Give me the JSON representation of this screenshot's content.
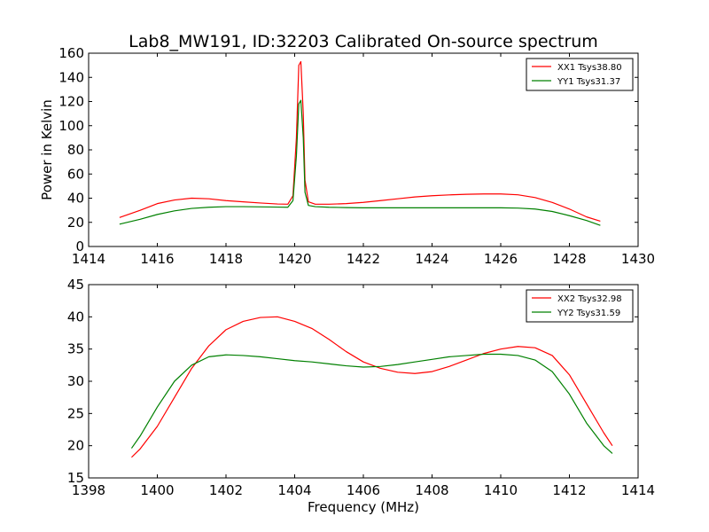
{
  "figure": {
    "title": "Lab8_MW191, ID:32203 Calibrated On-source spectrum",
    "xlabel": "Frequency (MHz)"
  },
  "chart_data": [
    {
      "type": "line",
      "title": "Lab8_MW191, ID:32203 Calibrated On-source spectrum",
      "xlabel": "",
      "ylabel": "Power in Kelvin",
      "xlim": [
        1414,
        1430
      ],
      "ylim": [
        0,
        160
      ],
      "xticks": [
        1414,
        1416,
        1418,
        1420,
        1422,
        1424,
        1426,
        1428,
        1430
      ],
      "yticks": [
        0,
        20,
        40,
        60,
        80,
        100,
        120,
        140,
        160
      ],
      "grid": false,
      "legend": "top-right",
      "series": [
        {
          "name": "XX1 Tsys38.80",
          "color": "#ff0000",
          "x": [
            1414.9,
            1415.5,
            1416.0,
            1416.5,
            1417.0,
            1417.5,
            1418.0,
            1418.5,
            1419.0,
            1419.5,
            1419.8,
            1419.95,
            1420.05,
            1420.12,
            1420.18,
            1420.25,
            1420.3,
            1420.4,
            1420.6,
            1421.0,
            1421.5,
            1422.0,
            1422.5,
            1423.0,
            1423.5,
            1424.0,
            1424.5,
            1425.0,
            1425.5,
            1426.0,
            1426.5,
            1427.0,
            1427.5,
            1428.0,
            1428.5,
            1428.9
          ],
          "y": [
            24,
            30,
            35.5,
            38.5,
            40,
            39.5,
            38,
            37,
            36,
            35.2,
            35,
            42,
            90,
            150,
            153,
            110,
            55,
            37,
            35,
            35,
            35.5,
            36.5,
            38,
            39.5,
            41,
            42,
            42.7,
            43.2,
            43.5,
            43.5,
            42.8,
            40.5,
            36.5,
            31,
            24.5,
            21
          ]
        },
        {
          "name": "YY1 Tsys31.37",
          "color": "#008000",
          "x": [
            1414.9,
            1415.5,
            1416.0,
            1416.5,
            1417.0,
            1417.5,
            1418.0,
            1418.5,
            1419.0,
            1419.5,
            1419.8,
            1419.95,
            1420.05,
            1420.12,
            1420.18,
            1420.25,
            1420.3,
            1420.4,
            1420.6,
            1421.0,
            1421.5,
            1422.0,
            1422.5,
            1423.0,
            1423.5,
            1424.0,
            1424.5,
            1425.0,
            1425.5,
            1426.0,
            1426.5,
            1427.0,
            1427.5,
            1428.0,
            1428.5,
            1428.9
          ],
          "y": [
            18.5,
            22.5,
            26.5,
            29.5,
            31.5,
            32.5,
            33,
            33,
            32.8,
            32.6,
            32.5,
            38,
            75,
            118,
            121,
            90,
            45,
            34,
            33,
            32.5,
            32.2,
            32,
            32,
            32,
            32,
            32,
            32,
            32,
            32,
            32,
            31.8,
            31,
            29,
            25.5,
            21.5,
            17.5
          ]
        }
      ]
    },
    {
      "type": "line",
      "title": "",
      "xlabel": "Frequency (MHz)",
      "ylabel": "",
      "xlim": [
        1398,
        1414
      ],
      "ylim": [
        15,
        45
      ],
      "xticks": [
        1398,
        1400,
        1402,
        1404,
        1406,
        1408,
        1410,
        1412,
        1414
      ],
      "yticks": [
        15,
        20,
        25,
        30,
        35,
        40,
        45
      ],
      "grid": false,
      "legend": "top-right",
      "series": [
        {
          "name": "XX2 Tsys32.98",
          "color": "#ff0000",
          "x": [
            1399.25,
            1399.5,
            1400.0,
            1400.5,
            1401.0,
            1401.5,
            1402.0,
            1402.5,
            1403.0,
            1403.5,
            1404.0,
            1404.5,
            1405.0,
            1405.5,
            1406.0,
            1406.5,
            1407.0,
            1407.5,
            1408.0,
            1408.5,
            1409.0,
            1409.5,
            1410.0,
            1410.5,
            1411.0,
            1411.5,
            1412.0,
            1412.5,
            1413.0,
            1413.25
          ],
          "y": [
            18.2,
            19.5,
            23,
            27.5,
            32,
            35.5,
            38,
            39.3,
            39.9,
            40,
            39.3,
            38.2,
            36.5,
            34.6,
            33,
            32,
            31.4,
            31.2,
            31.5,
            32.3,
            33.3,
            34.3,
            35,
            35.4,
            35.2,
            34,
            31,
            26.5,
            22,
            20
          ]
        },
        {
          "name": "YY2 Tsys31.59",
          "color": "#008000",
          "x": [
            1399.25,
            1399.5,
            1400.0,
            1400.5,
            1401.0,
            1401.5,
            1402.0,
            1402.5,
            1403.0,
            1403.5,
            1404.0,
            1404.5,
            1405.0,
            1405.5,
            1406.0,
            1406.5,
            1407.0,
            1407.5,
            1408.0,
            1408.5,
            1409.0,
            1409.5,
            1410.0,
            1410.5,
            1411.0,
            1411.5,
            1412.0,
            1412.5,
            1413.0,
            1413.25
          ],
          "y": [
            19.6,
            21.5,
            26,
            30,
            32.5,
            33.8,
            34.1,
            34,
            33.8,
            33.5,
            33.2,
            33,
            32.7,
            32.4,
            32.2,
            32.3,
            32.6,
            33,
            33.4,
            33.8,
            34,
            34.2,
            34.2,
            34,
            33.3,
            31.5,
            28,
            23.5,
            20,
            18.8
          ]
        }
      ]
    }
  ]
}
